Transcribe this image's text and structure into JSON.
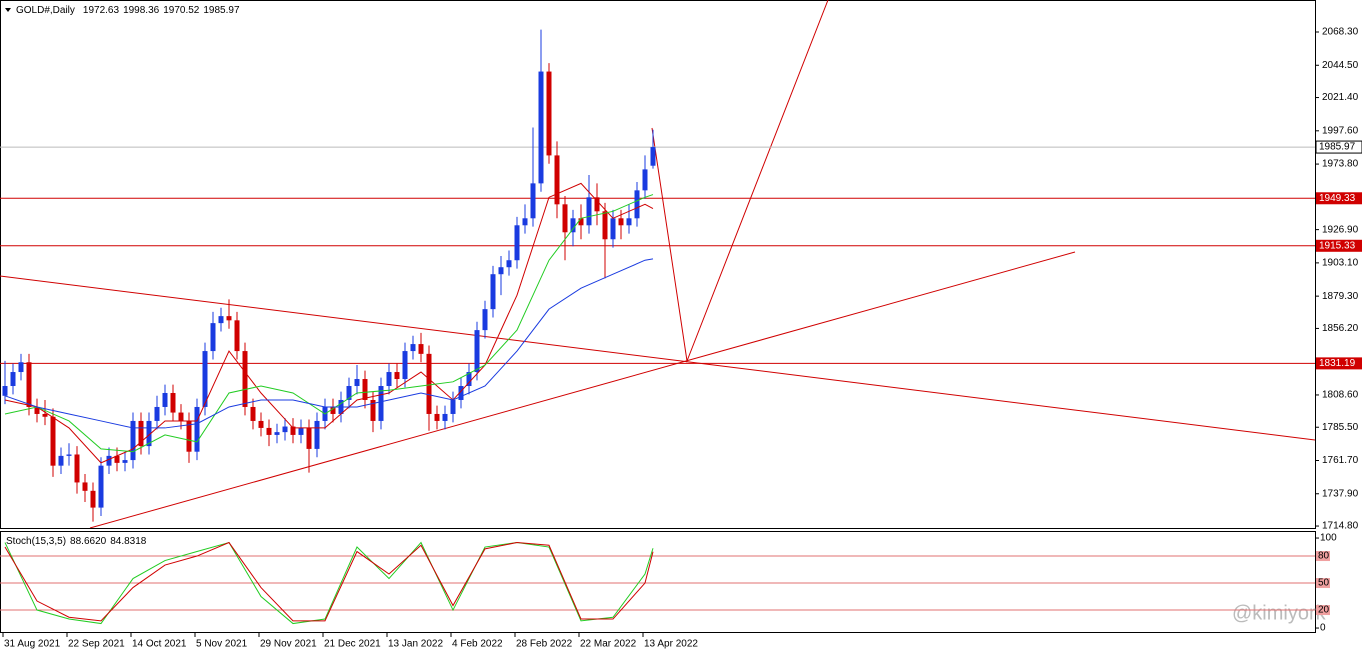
{
  "chart_data": {
    "type": "candlestick",
    "symbol": "GOLD#,Daily",
    "open": [
      1808,
      1815,
      1825,
      1832,
      1800,
      1795,
      1793,
      1758,
      1765,
      1766,
      1746,
      1740,
      1728,
      1758,
      1765,
      1760,
      1762,
      1790,
      1772,
      1790,
      1800,
      1810,
      1796,
      1790,
      1768,
      1800,
      1840,
      1860,
      1865,
      1862,
      1840,
      1800,
      1790,
      1785,
      1780,
      1782,
      1786,
      1780,
      1785,
      1770,
      1790,
      1800,
      1795,
      1805,
      1815,
      1820,
      1805,
      1790,
      1815,
      1825,
      1820,
      1840,
      1845,
      1838,
      1795,
      1790,
      1795,
      1805,
      1815,
      1825,
      1855,
      1870,
      1895,
      1900,
      1905,
      1930,
      1935,
      1960,
      2040,
      1980,
      1945,
      1925,
      1935,
      1930,
      1950,
      1940,
      1920,
      1935,
      1930,
      1935,
      1955,
      1972.63
    ],
    "high": [
      1833,
      1831,
      1838,
      1838,
      1806,
      1805,
      1799,
      1771,
      1774,
      1772,
      1752,
      1746,
      1764,
      1771,
      1771,
      1768,
      1796,
      1796,
      1796,
      1808,
      1816,
      1816,
      1802,
      1796,
      1806,
      1846,
      1868,
      1871,
      1877,
      1868,
      1846,
      1806,
      1796,
      1791,
      1788,
      1792,
      1792,
      1791,
      1791,
      1796,
      1806,
      1806,
      1811,
      1821,
      1830,
      1826,
      1811,
      1821,
      1831,
      1831,
      1846,
      1851,
      1853,
      1844,
      1801,
      1801,
      1811,
      1821,
      1831,
      1861,
      1876,
      1901,
      1908,
      1912,
      1936,
      1945,
      2000,
      2070,
      2046,
      1990,
      1951,
      1941,
      1945,
      1966,
      1960,
      1946,
      1941,
      1941,
      1945,
      1961,
      1980,
      1998.36
    ],
    "low": [
      1802,
      1809,
      1819,
      1794,
      1789,
      1787,
      1750,
      1752,
      1758,
      1738,
      1732,
      1718,
      1722,
      1752,
      1754,
      1754,
      1756,
      1766,
      1766,
      1784,
      1794,
      1790,
      1784,
      1760,
      1762,
      1794,
      1834,
      1854,
      1856,
      1834,
      1794,
      1784,
      1779,
      1772,
      1774,
      1776,
      1774,
      1774,
      1753,
      1764,
      1784,
      1789,
      1789,
      1799,
      1809,
      1799,
      1782,
      1784,
      1809,
      1814,
      1814,
      1834,
      1832,
      1783,
      1784,
      1784,
      1789,
      1799,
      1809,
      1819,
      1849,
      1864,
      1880,
      1894,
      1899,
      1924,
      1929,
      1954,
      1974,
      1935,
      1905,
      1915,
      1920,
      1924,
      1930,
      1892,
      1914,
      1920,
      1924,
      1929,
      1949,
      1970.52
    ],
    "close": [
      1815,
      1825,
      1832,
      1800,
      1795,
      1793,
      1758,
      1765,
      1766,
      1746,
      1740,
      1728,
      1758,
      1765,
      1760,
      1762,
      1790,
      1772,
      1790,
      1800,
      1810,
      1796,
      1790,
      1768,
      1800,
      1840,
      1860,
      1865,
      1862,
      1840,
      1800,
      1790,
      1785,
      1780,
      1782,
      1786,
      1780,
      1785,
      1770,
      1790,
      1800,
      1795,
      1805,
      1815,
      1820,
      1805,
      1790,
      1815,
      1825,
      1820,
      1840,
      1845,
      1838,
      1795,
      1790,
      1795,
      1805,
      1815,
      1825,
      1855,
      1870,
      1895,
      1900,
      1905,
      1930,
      1935,
      1960,
      2040,
      1980,
      1945,
      1925,
      1935,
      1930,
      1950,
      1940,
      1920,
      1935,
      1930,
      1935,
      1955,
      1970,
      1985.97
    ],
    "up_color": "#1a3be0",
    "down_color": "#d00000",
    "xlim": [
      -0.625,
      163.75
    ],
    "ylim": [
      1713.4,
      2091.2
    ],
    "yticks": [
      {
        "value": 2068.3,
        "label": "2068.30"
      },
      {
        "value": 2044.5,
        "label": "2044.50"
      },
      {
        "value": 2021.4,
        "label": "2021.40"
      },
      {
        "value": 1997.6,
        "label": "1997.60"
      },
      {
        "value": 1973.8,
        "label": "1973.80"
      },
      {
        "value": 1926.9,
        "label": "1926.90"
      },
      {
        "value": 1903.1,
        "label": "1903.10"
      },
      {
        "value": 1879.3,
        "label": "1879.30"
      },
      {
        "value": 1856.2,
        "label": "1856.20"
      },
      {
        "value": 1808.6,
        "label": "1808.60"
      },
      {
        "value": 1785.5,
        "label": "1785.50"
      },
      {
        "value": 1761.7,
        "label": "1761.70"
      },
      {
        "value": 1737.9,
        "label": "1737.90"
      },
      {
        "value": 1714.8,
        "label": "1714.80"
      }
    ],
    "levels": [
      1949.33,
      1915.33,
      1831.19
    ],
    "level_color": "#d00000",
    "xticks": [
      {
        "value": 0,
        "label": "31 Aug 2021"
      },
      {
        "value": 8,
        "label": "22 Sep 2021"
      },
      {
        "value": 16,
        "label": "14 Oct 2021"
      },
      {
        "value": 24,
        "label": "5 Nov 2021"
      },
      {
        "value": 32,
        "label": "29 Nov 2021"
      },
      {
        "value": 40,
        "label": "21 Dec 2021"
      },
      {
        "value": 48,
        "label": "13 Jan 2022"
      },
      {
        "value": 56,
        "label": "4 Feb 2022"
      },
      {
        "value": 64,
        "label": "28 Feb 2022"
      },
      {
        "value": 72,
        "label": "22 Mar 2022"
      },
      {
        "value": 80,
        "label": "13 Apr 2022"
      }
    ],
    "indicator_x": [
      0,
      4,
      8,
      12,
      16,
      20,
      24,
      28,
      32,
      36,
      40,
      44,
      48,
      52,
      56,
      60,
      64,
      68,
      72,
      76,
      80,
      81
    ],
    "indicators": [
      {
        "color": "#d00000",
        "values": [
          1805,
          1800,
          1785,
          1760,
          1770,
          1790,
          1790,
          1840,
          1810,
          1785,
          1785,
          1805,
          1810,
          1825,
          1805,
          1830,
          1880,
          1950,
          1960,
          1935,
          1945,
          1942
        ]
      },
      {
        "color": "#22cc22",
        "values": [
          1795,
          1800,
          1790,
          1770,
          1768,
          1780,
          1775,
          1810,
          1815,
          1810,
          1795,
          1810,
          1812,
          1815,
          1818,
          1830,
          1855,
          1905,
          1935,
          1940,
          1950,
          1952
        ]
      },
      {
        "color": "#1a3be0",
        "values": [
          1808,
          1800,
          1795,
          1790,
          1785,
          1785,
          1788,
          1800,
          1805,
          1805,
          1800,
          1800,
          1805,
          1810,
          1805,
          1815,
          1840,
          1870,
          1885,
          1895,
          1905,
          1906
        ]
      }
    ],
    "stoch": {
      "label": "Stoch(15,3,5)",
      "ylim": [
        -4.4,
        105.6
      ],
      "yticks": [
        100,
        0
      ],
      "levels": [
        80,
        50,
        20
      ],
      "lines": [
        {
          "color": "#22cc22",
          "values": [
            95,
            20,
            10,
            5,
            55,
            75,
            85,
            95,
            35,
            5,
            10,
            90,
            55,
            95,
            20,
            90,
            95,
            90,
            8,
            12,
            60,
            88.662
          ],
          "value_labels": [
            null,
            null,
            null,
            null,
            null,
            null,
            null,
            null,
            null,
            null,
            null,
            null,
            null,
            null,
            null,
            null,
            null,
            null,
            null,
            null,
            null,
            "88.6620"
          ]
        },
        {
          "color": "#d00000",
          "values": [
            90,
            30,
            12,
            8,
            45,
            70,
            80,
            95,
            45,
            8,
            8,
            85,
            60,
            92,
            25,
            88,
            95,
            92,
            10,
            10,
            50,
            84.8318
          ]
        }
      ]
    },
    "watermark": "@kimiyork"
  }
}
